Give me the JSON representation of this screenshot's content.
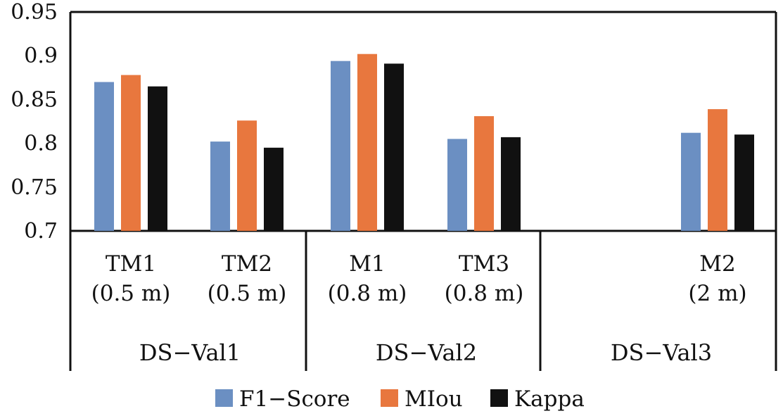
{
  "chart_data": {
    "type": "bar",
    "title": "",
    "xlabel": "",
    "ylabel": "",
    "ylim": [
      0.7,
      0.95
    ],
    "yticks": [
      "0.7",
      "0.75",
      "0.8",
      "0.85",
      "0.9",
      "0.95"
    ],
    "grid": false,
    "legend_position": "bottom",
    "categories": [
      {
        "label_line1": "TM1",
        "label_line2": "(0.5 m)",
        "group": "DS-Val1"
      },
      {
        "label_line1": "TM2",
        "label_line2": "(0.5 m)",
        "group": "DS-Val1"
      },
      {
        "label_line1": "M1",
        "label_line2": "(0.8 m)",
        "group": "DS-Val2"
      },
      {
        "label_line1": "TM3",
        "label_line2": "(0.8 m)",
        "group": "DS-Val2"
      },
      {
        "label_line1": "",
        "label_line2": "",
        "group": "DS-Val3"
      },
      {
        "label_line1": "M2",
        "label_line2": "(2 m)",
        "group": "DS-Val3"
      }
    ],
    "groups": [
      "DS−Val1",
      "DS−Val2",
      "DS−Val3"
    ],
    "series": [
      {
        "name": "F1−Score",
        "color": "#6b8fc2",
        "values": [
          0.87,
          0.802,
          0.894,
          0.805,
          null,
          0.812
        ]
      },
      {
        "name": "MIou",
        "color": "#e8773e",
        "values": [
          0.878,
          0.826,
          0.902,
          0.831,
          null,
          0.839
        ]
      },
      {
        "name": "Kappa",
        "color": "#111111",
        "values": [
          0.865,
          0.795,
          0.891,
          0.807,
          null,
          0.81
        ]
      }
    ]
  }
}
